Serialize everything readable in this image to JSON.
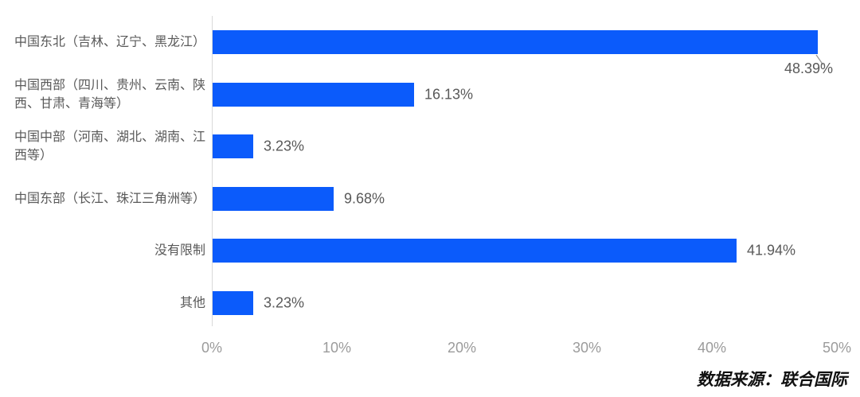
{
  "chart_data": {
    "type": "bar",
    "orientation": "horizontal",
    "title": "",
    "xlabel": "",
    "ylabel": "",
    "xlim": [
      0,
      50
    ],
    "grid": false,
    "legend": false,
    "bar_color": "#0b5bfb",
    "categories": [
      "中国东北（吉林、辽宁、黑龙江）",
      "中国西部（四川、贵州、云南、陕\n西、甘肃、青海等）",
      "中国中部（河南、湖北、湖南、江\n西等）",
      "中国东部（长江、珠江三角洲等）",
      "没有限制",
      "其他"
    ],
    "values": [
      48.39,
      16.13,
      3.23,
      9.68,
      41.94,
      3.23
    ],
    "value_labels": [
      "48.39%",
      "16.13%",
      "3.23%",
      "9.68%",
      "41.94%",
      "3.23%"
    ],
    "x_ticks": [
      0,
      10,
      20,
      30,
      40,
      50
    ],
    "x_tick_labels": [
      "0%",
      "10%",
      "20%",
      "30%",
      "40%",
      "50%"
    ]
  },
  "source_caption": "数据来源：联合国际"
}
